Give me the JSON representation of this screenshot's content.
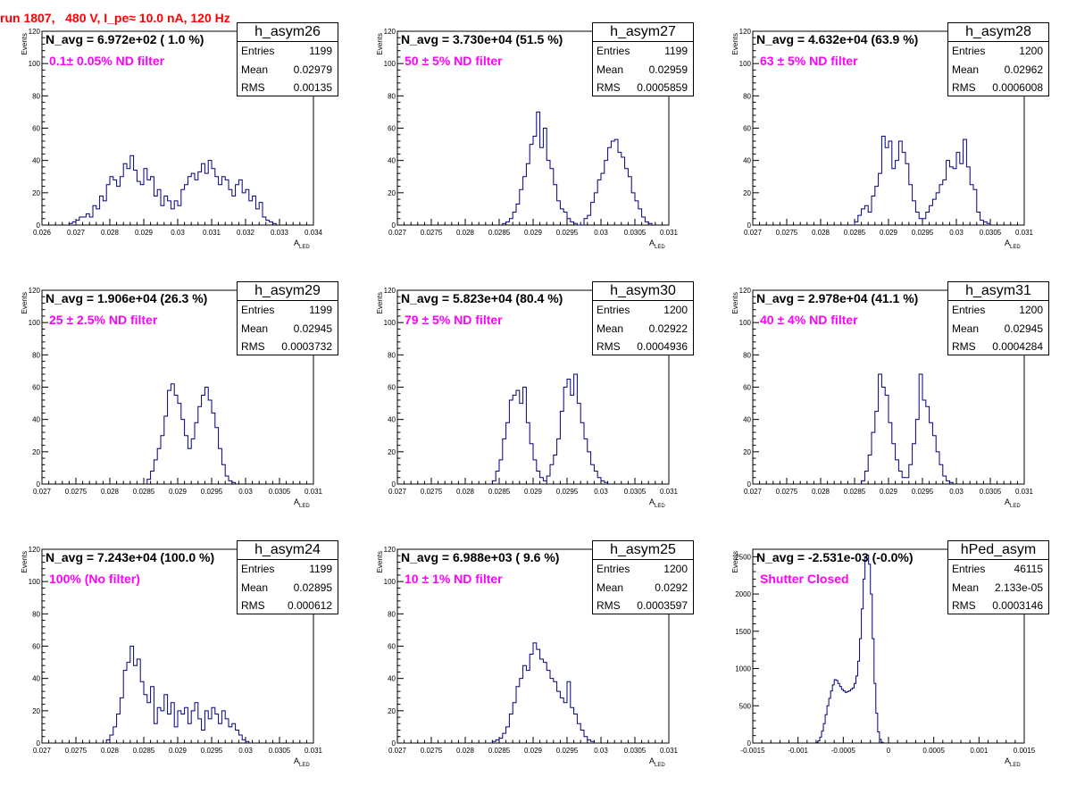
{
  "header": {
    "run_title": "run 1807,   480 V, I_pe≈ 10.0 nA, 120 Hz"
  },
  "colors": {
    "histogram": "#000080",
    "filter_text": "#ff00ff",
    "title_text": "#ff0000"
  },
  "stat_labels": {
    "entries": "Entries",
    "mean": "Mean",
    "rms": "RMS"
  },
  "chart_data": [
    {
      "type": "bar",
      "name": "h_asym26",
      "navg": "N_avg = 6.972e+02 ( 1.0 %)",
      "filter": "0.1± 0.05% ND filter",
      "entries": "1199",
      "mean": "0.02979",
      "rms": "0.00135",
      "xlabel": "A",
      "xlabel_sub": "LED",
      "ylabel": "Events",
      "xlim": [
        0.026,
        0.034
      ],
      "ylim": [
        0,
        120
      ],
      "xticks": [
        "0.026",
        "0.027",
        "0.028",
        "0.029",
        "0.03",
        "0.031",
        "0.032",
        "0.033",
        "0.034"
      ],
      "yticks": [
        "0",
        "20",
        "40",
        "60",
        "80",
        "100",
        "120"
      ],
      "bin_start": 0.0268,
      "bin_width": 0.0001,
      "values": [
        1,
        2,
        3,
        5,
        5,
        7,
        5,
        12,
        10,
        18,
        15,
        25,
        30,
        28,
        24,
        30,
        38,
        35,
        43,
        34,
        27,
        25,
        35,
        28,
        30,
        18,
        22,
        12,
        18,
        15,
        10,
        15,
        12,
        22,
        25,
        30,
        32,
        28,
        33,
        38,
        32,
        40,
        35,
        30,
        25,
        30,
        28,
        22,
        18,
        25,
        28,
        20,
        22,
        15,
        18,
        10,
        14,
        5,
        3,
        2,
        1
      ]
    },
    {
      "type": "bar",
      "name": "h_asym27",
      "navg": "N_avg = 3.730e+04 (51.5 %)",
      "filter": "50 ± 5% ND filter",
      "entries": "1199",
      "mean": "0.02959",
      "rms": "0.0005859",
      "xlabel": "A",
      "xlabel_sub": "LED",
      "ylabel": "Events",
      "xlim": [
        0.027,
        0.031
      ],
      "ylim": [
        0,
        120
      ],
      "xticks": [
        "0.027",
        "0.0275",
        "0.028",
        "0.0285",
        "0.029",
        "0.0295",
        "0.03",
        "0.0305",
        "0.031"
      ],
      "yticks": [
        "0",
        "20",
        "40",
        "60",
        "80",
        "100",
        "120"
      ],
      "bin_start": 0.02855,
      "bin_width": 5e-05,
      "values": [
        1,
        2,
        4,
        8,
        13,
        22,
        30,
        38,
        50,
        55,
        70,
        48,
        60,
        40,
        35,
        25,
        15,
        10,
        8,
        4,
        2,
        1,
        0,
        0,
        4,
        6,
        14,
        20,
        28,
        32,
        40,
        48,
        52,
        53,
        45,
        42,
        35,
        30,
        20,
        15,
        10,
        5,
        2,
        1
      ]
    },
    {
      "type": "bar",
      "name": "h_asym28",
      "navg": "N_avg = 4.632e+04 (63.9 %)",
      "filter": "63 ± 5% ND filter",
      "entries": "1200",
      "mean": "0.02962",
      "rms": "0.0006008",
      "xlabel": "A",
      "xlabel_sub": "LED",
      "ylabel": "Events",
      "xlim": [
        0.027,
        0.031
      ],
      "ylim": [
        0,
        120
      ],
      "xticks": [
        "0.027",
        "0.0275",
        "0.028",
        "0.0285",
        "0.029",
        "0.0295",
        "0.03",
        "0.0305",
        "0.031"
      ],
      "yticks": [
        "0",
        "20",
        "40",
        "60",
        "80",
        "100",
        "120"
      ],
      "bin_start": 0.0285,
      "bin_width": 5e-05,
      "values": [
        2,
        6,
        10,
        12,
        8,
        18,
        24,
        32,
        55,
        48,
        52,
        35,
        40,
        52,
        45,
        38,
        25,
        15,
        8,
        4,
        4,
        8,
        12,
        16,
        20,
        25,
        28,
        40,
        36,
        35,
        45,
        38,
        53,
        36,
        25,
        22,
        8,
        3,
        2,
        1
      ]
    },
    {
      "type": "bar",
      "name": "h_asym29",
      "navg": "N_avg = 1.906e+04 (26.3 %)",
      "filter": "25 ± 2.5% ND filter",
      "entries": "1199",
      "mean": "0.02945",
      "rms": "0.0003732",
      "xlabel": "A",
      "xlabel_sub": "LED",
      "ylabel": "Events",
      "xlim": [
        0.027,
        0.031
      ],
      "ylim": [
        0,
        120
      ],
      "xticks": [
        "0.027",
        "0.0275",
        "0.028",
        "0.0285",
        "0.029",
        "0.0295",
        "0.03",
        "0.0305",
        "0.031"
      ],
      "yticks": [
        "0",
        "20",
        "40",
        "60",
        "80",
        "100",
        "120"
      ],
      "bin_start": 0.02855,
      "bin_width": 5e-05,
      "values": [
        3,
        8,
        15,
        22,
        30,
        42,
        58,
        62,
        55,
        50,
        40,
        30,
        22,
        28,
        38,
        48,
        55,
        60,
        52,
        44,
        35,
        22,
        12,
        5,
        2,
        1
      ]
    },
    {
      "type": "bar",
      "name": "h_asym30",
      "navg": "N_avg = 5.823e+04 (80.4 %)",
      "filter": "79 ± 5% ND filter",
      "entries": "1200",
      "mean": "0.02922",
      "rms": "0.0004936",
      "xlabel": "A",
      "xlabel_sub": "LED",
      "ylabel": "Events",
      "xlim": [
        0.027,
        0.031
      ],
      "ylim": [
        0,
        120
      ],
      "xticks": [
        "0.027",
        "0.0275",
        "0.028",
        "0.0285",
        "0.029",
        "0.0295",
        "0.03",
        "0.0305",
        "0.031"
      ],
      "yticks": [
        "0",
        "20",
        "40",
        "60",
        "80",
        "100",
        "120"
      ],
      "bin_start": 0.0284,
      "bin_width": 5e-05,
      "values": [
        2,
        8,
        15,
        28,
        38,
        52,
        55,
        58,
        50,
        60,
        38,
        25,
        15,
        8,
        4,
        2,
        5,
        12,
        18,
        28,
        45,
        60,
        65,
        55,
        68,
        50,
        38,
        28,
        20,
        12,
        8,
        4,
        2,
        1
      ]
    },
    {
      "type": "bar",
      "name": "h_asym31",
      "navg": "N_avg = 2.978e+04 (41.1 %)",
      "filter": "40 ± 4% ND filter",
      "entries": "1200",
      "mean": "0.02945",
      "rms": "0.0004284",
      "xlabel": "A",
      "xlabel_sub": "LED",
      "ylabel": "Events",
      "xlim": [
        0.027,
        0.031
      ],
      "ylim": [
        0,
        120
      ],
      "xticks": [
        "0.027",
        "0.0275",
        "0.028",
        "0.0285",
        "0.029",
        "0.0295",
        "0.03",
        "0.0305",
        "0.031"
      ],
      "yticks": [
        "0",
        "20",
        "40",
        "60",
        "80",
        "100",
        "120"
      ],
      "bin_start": 0.0286,
      "bin_width": 5e-05,
      "values": [
        2,
        8,
        18,
        32,
        45,
        68,
        60,
        55,
        38,
        25,
        15,
        8,
        4,
        4,
        12,
        25,
        40,
        68,
        52,
        48,
        38,
        30,
        20,
        12,
        5,
        2,
        1
      ]
    },
    {
      "type": "bar",
      "name": "h_asym24",
      "navg": "N_avg = 7.243e+04 (100.0 %)",
      "filter": "100% (No filter)",
      "entries": "1199",
      "mean": "0.02895",
      "rms": "0.000612",
      "xlabel": "A",
      "xlabel_sub": "LED",
      "ylabel": "Events",
      "xlim": [
        0.027,
        0.031
      ],
      "ylim": [
        0,
        120
      ],
      "xticks": [
        "0.027",
        "0.0275",
        "0.028",
        "0.0285",
        "0.029",
        "0.0295",
        "0.03",
        "0.0305",
        "0.031"
      ],
      "yticks": [
        "0",
        "20",
        "40",
        "60",
        "80",
        "100",
        "120"
      ],
      "bin_start": 0.02795,
      "bin_width": 5e-05,
      "values": [
        2,
        5,
        10,
        18,
        28,
        45,
        50,
        60,
        48,
        52,
        38,
        30,
        25,
        35,
        12,
        22,
        20,
        30,
        18,
        25,
        10,
        20,
        18,
        22,
        12,
        20,
        25,
        15,
        8,
        20,
        15,
        22,
        18,
        12,
        20,
        15,
        10,
        12,
        8,
        5,
        2,
        1
      ]
    },
    {
      "type": "bar",
      "name": "h_asym25",
      "navg": "N_avg = 6.988e+03 ( 9.6 %)",
      "filter": "10 ± 1% ND filter",
      "entries": "1200",
      "mean": "0.0292",
      "rms": "0.0003597",
      "xlabel": "A",
      "xlabel_sub": "LED",
      "ylabel": "Events",
      "xlim": [
        0.027,
        0.031
      ],
      "ylim": [
        0,
        120
      ],
      "xticks": [
        "0.027",
        "0.0275",
        "0.028",
        "0.0285",
        "0.029",
        "0.0295",
        "0.03",
        "0.0305",
        "0.031"
      ],
      "yticks": [
        "0",
        "20",
        "40",
        "60",
        "80",
        "100",
        "120"
      ],
      "bin_start": 0.0284,
      "bin_width": 5e-05,
      "values": [
        1,
        2,
        3,
        6,
        10,
        18,
        25,
        35,
        40,
        48,
        45,
        55,
        62,
        58,
        52,
        50,
        45,
        40,
        38,
        32,
        28,
        25,
        38,
        22,
        18,
        12,
        8,
        4,
        2,
        1
      ]
    },
    {
      "type": "bar",
      "name": "hPed_asym",
      "navg": "N_avg = -2.531e-03 (-0.0%)",
      "filter": "Shutter Closed",
      "entries": "46115",
      "mean": "2.133e-05",
      "rms": "0.0003146",
      "xlabel": "A",
      "xlabel_sub": "LED",
      "ylabel": "Events",
      "xlim": [
        -0.0015,
        0.0015
      ],
      "ylim": [
        0,
        2600
      ],
      "xticks": [
        "-0.0015",
        "-0.001",
        "-0.0005",
        "0",
        "0.0005",
        "0.001",
        "0.0015"
      ],
      "yticks": [
        "0",
        "500",
        "1000",
        "1500",
        "2000",
        "2500"
      ],
      "bin_start": -0.0008,
      "bin_width": 2e-05,
      "values": [
        10,
        30,
        80,
        160,
        260,
        380,
        500,
        600,
        700,
        780,
        850,
        840,
        800,
        760,
        720,
        700,
        680,
        690,
        700,
        720,
        740,
        800,
        900,
        1100,
        1400,
        1800,
        2200,
        2500,
        2520,
        2400,
        2000,
        1400,
        800,
        400,
        150,
        50,
        10
      ]
    }
  ]
}
